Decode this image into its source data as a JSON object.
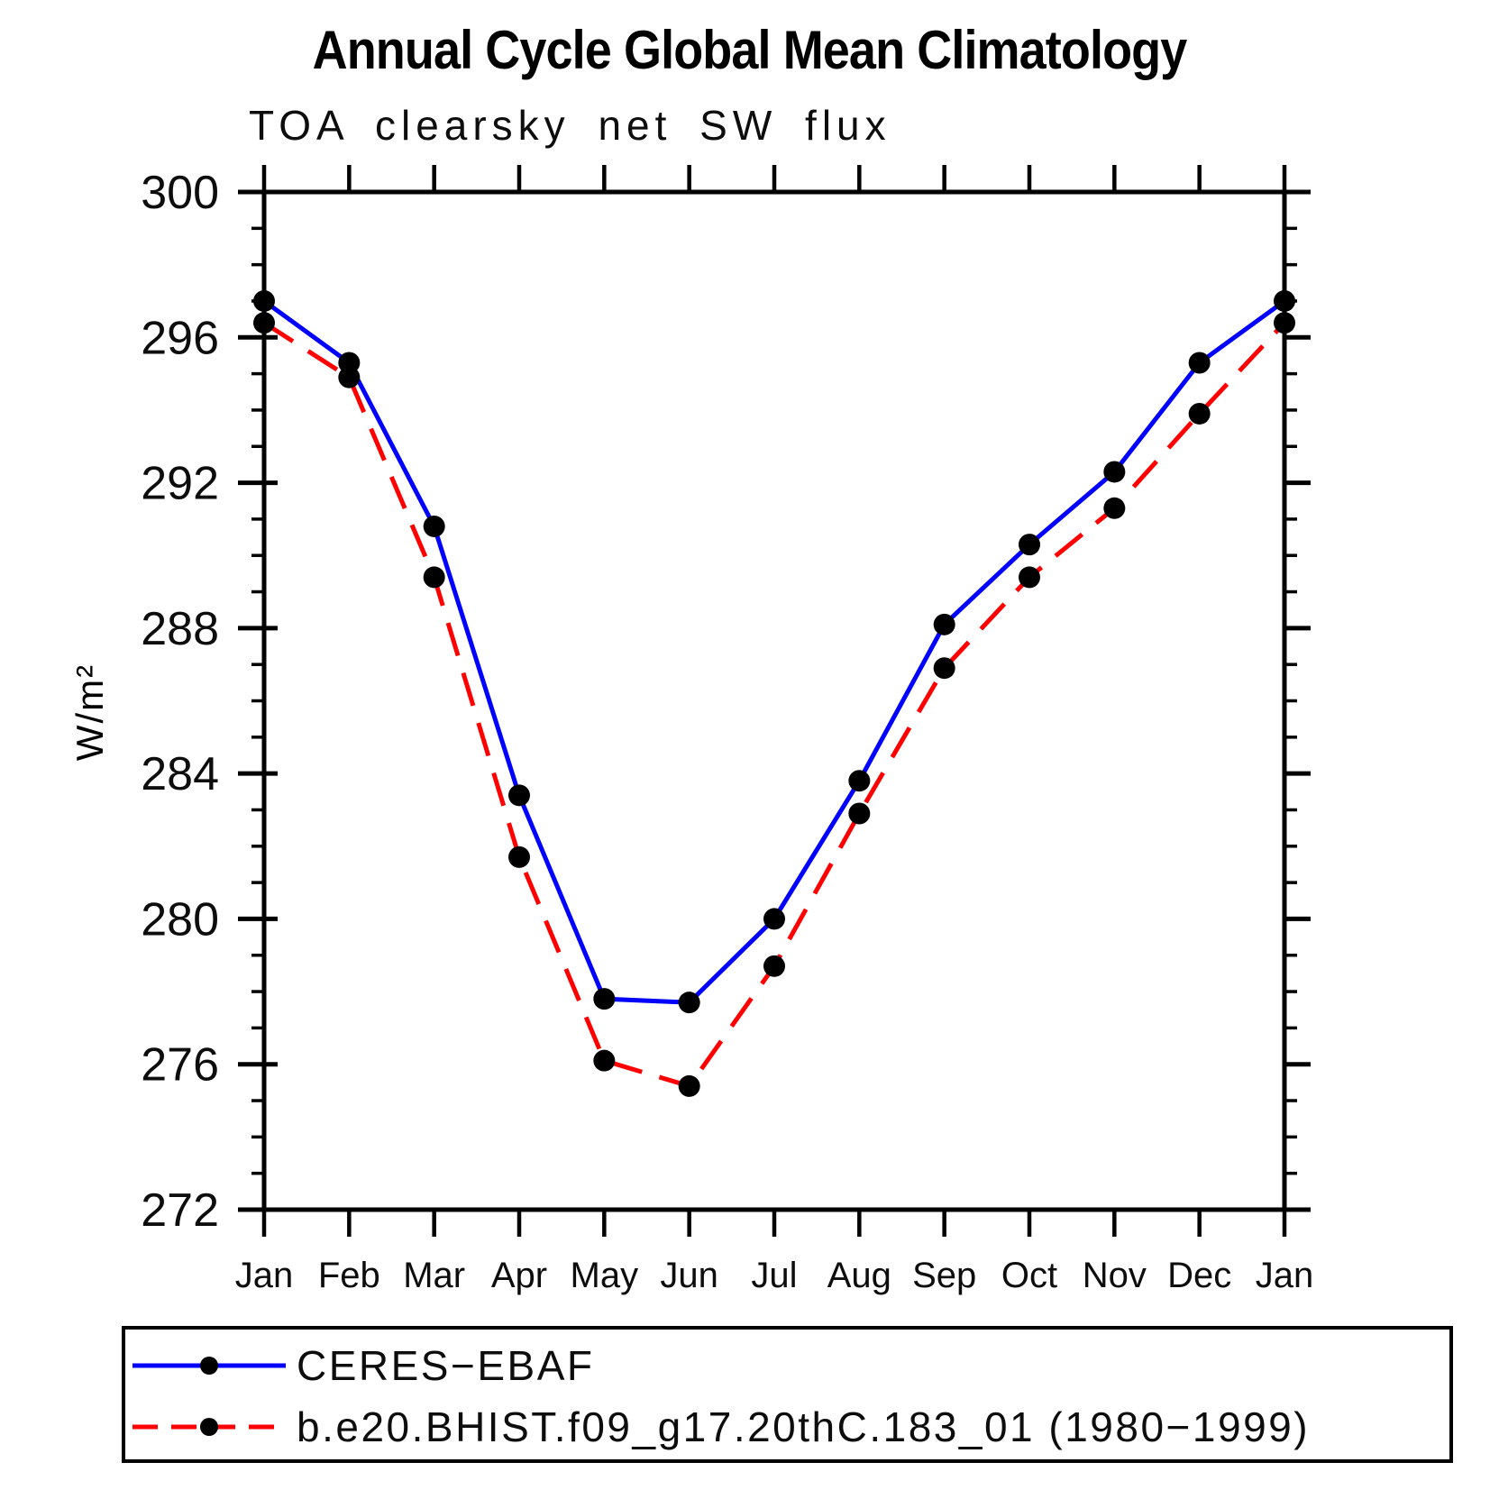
{
  "title": "Annual Cycle Global Mean Climatology",
  "subtitle": "TOA clearsky net SW flux",
  "ylabel": "W/m²",
  "colors": {
    "obs_line": "#0000ff",
    "model_line": "#ff0000",
    "marker": "#000000",
    "axis": "#000000",
    "background": "#ffffff"
  },
  "chart_data": {
    "type": "line",
    "categories": [
      "Jan",
      "Feb",
      "Mar",
      "Apr",
      "May",
      "Jun",
      "Jul",
      "Aug",
      "Sep",
      "Oct",
      "Nov",
      "Dec",
      "Jan"
    ],
    "series": [
      {
        "name": "CERES-EBAF",
        "color": "#0000ff",
        "style": "solid",
        "marker": "filled-circle",
        "values": [
          297.0,
          295.3,
          290.8,
          283.4,
          277.8,
          277.7,
          280.0,
          283.8,
          288.1,
          290.3,
          292.3,
          295.3,
          297.0
        ]
      },
      {
        "name": "b.e20.BHIST.f09_g17.20thC.183_01 (1980-1999)",
        "color": "#ff0000",
        "style": "dashed",
        "marker": "filled-circle",
        "values": [
          296.4,
          294.9,
          289.4,
          281.7,
          276.1,
          275.4,
          278.7,
          282.9,
          286.9,
          289.4,
          291.3,
          293.9,
          296.4
        ]
      }
    ],
    "title": "Annual Cycle Global Mean Climatology",
    "subtitle": "TOA clearsky net SW flux",
    "xlabel": "",
    "ylabel": "W/m²",
    "ylim": [
      272,
      300
    ],
    "yticks_major": [
      272,
      276,
      280,
      284,
      288,
      292,
      296,
      300
    ],
    "ytick_minor_step": 1,
    "grid": false,
    "legend_position": "bottom-left-box"
  },
  "legend": {
    "items": [
      {
        "label": "CERES−EBAF"
      },
      {
        "label": "b.e20.BHIST.f09_g17.20thC.183_01 (1980−1999)"
      }
    ]
  }
}
